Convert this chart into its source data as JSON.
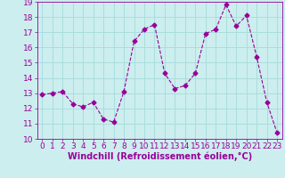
{
  "x": [
    0,
    1,
    2,
    3,
    4,
    5,
    6,
    7,
    8,
    9,
    10,
    11,
    12,
    13,
    14,
    15,
    16,
    17,
    18,
    19,
    20,
    21,
    22,
    23
  ],
  "y": [
    12.9,
    13.0,
    13.1,
    12.3,
    12.1,
    12.4,
    11.3,
    11.1,
    13.1,
    16.4,
    17.2,
    17.5,
    14.3,
    13.3,
    13.5,
    14.3,
    16.9,
    17.2,
    18.8,
    17.4,
    18.1,
    15.4,
    12.4,
    10.4
  ],
  "line_color": "#990099",
  "marker": "D",
  "marker_size": 2.5,
  "bg_color": "#cceeee",
  "grid_color": "#aadddd",
  "xlabel": "Windchill (Refroidissement éolien,°C)",
  "xlim": [
    -0.5,
    23.5
  ],
  "ylim": [
    10,
    19
  ],
  "yticks": [
    10,
    11,
    12,
    13,
    14,
    15,
    16,
    17,
    18,
    19
  ],
  "xticks": [
    0,
    1,
    2,
    3,
    4,
    5,
    6,
    7,
    8,
    9,
    10,
    11,
    12,
    13,
    14,
    15,
    16,
    17,
    18,
    19,
    20,
    21,
    22,
    23
  ],
  "tick_label_size": 6.5,
  "xlabel_size": 7,
  "label_color": "#990099",
  "line_width": 0.8
}
